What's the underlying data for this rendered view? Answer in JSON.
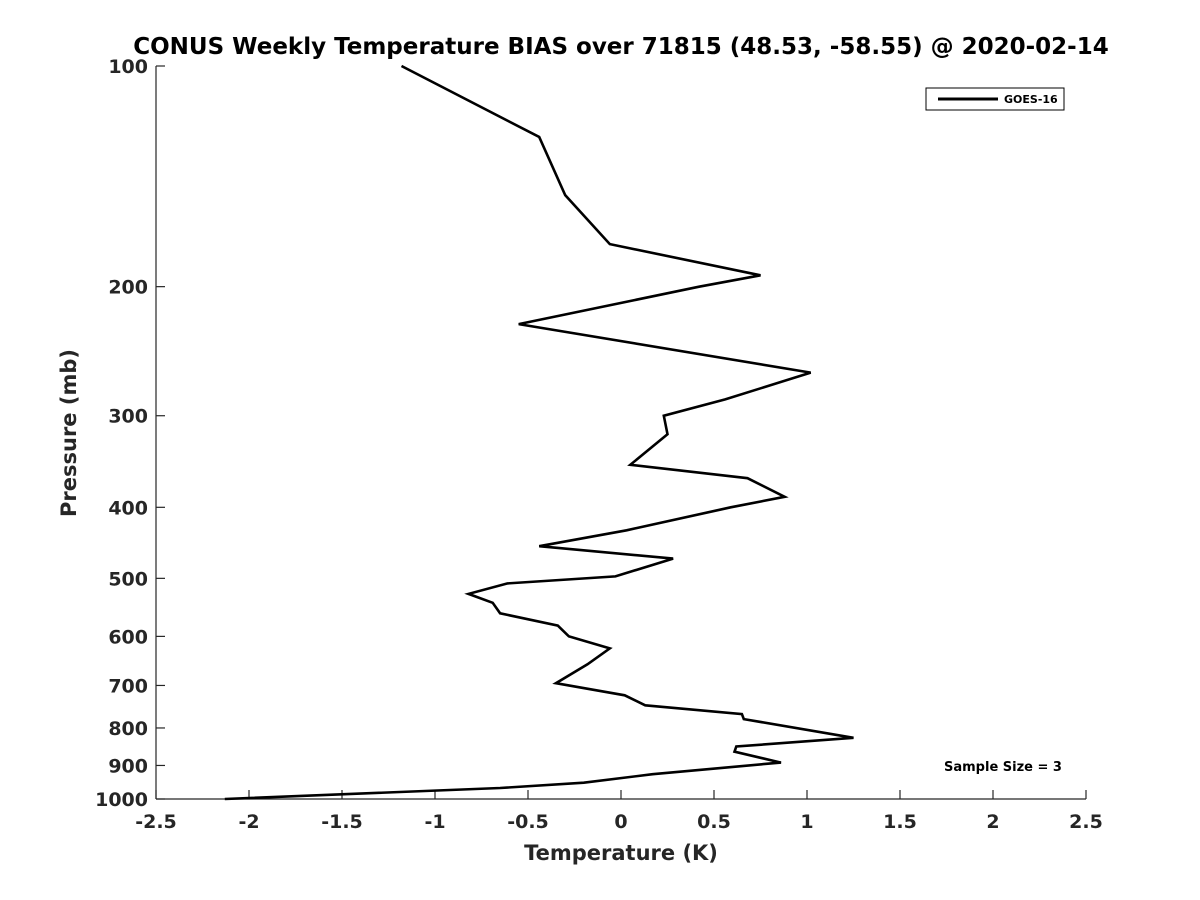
{
  "chart_data": {
    "type": "line",
    "title": "CONUS Weekly Temperature BIAS over 71815 (48.53, -58.55) @ 2020-02-14",
    "xlabel": "Temperature (K)",
    "ylabel": "Pressure (mb)",
    "xlim": [
      -2.5,
      2.5
    ],
    "ylim": [
      1000,
      100
    ],
    "y_scale": "log",
    "y_reversed": true,
    "grid": false,
    "legend_position": "top-right",
    "x_ticks": [
      "-2.5",
      "-2",
      "-1.5",
      "-1",
      "-0.5",
      "0",
      "0.5",
      "1",
      "1.5",
      "2",
      "2.5"
    ],
    "y_ticks": [
      "100",
      "200",
      "300",
      "400",
      "500",
      "600",
      "700",
      "800",
      "900",
      "1000"
    ],
    "annotation": "Sample Size = 3",
    "series": [
      {
        "name": "GOES-16",
        "color": "#000000",
        "points": [
          [
            -1.18,
            100
          ],
          [
            -0.44,
            125
          ],
          [
            -0.3,
            150
          ],
          [
            -0.06,
            175
          ],
          [
            0.75,
            193
          ],
          [
            0.42,
            200
          ],
          [
            -0.55,
            225
          ],
          [
            1.02,
            262
          ],
          [
            0.56,
            285
          ],
          [
            0.23,
            300
          ],
          [
            0.25,
            318
          ],
          [
            0.05,
            350
          ],
          [
            0.68,
            365
          ],
          [
            0.88,
            387
          ],
          [
            0.59,
            400
          ],
          [
            0.03,
            430
          ],
          [
            -0.44,
            452
          ],
          [
            0.28,
            470
          ],
          [
            -0.03,
            497
          ],
          [
            -0.61,
            508
          ],
          [
            -0.82,
            525
          ],
          [
            -0.69,
            540
          ],
          [
            -0.65,
            558
          ],
          [
            -0.34,
            580
          ],
          [
            -0.28,
            600
          ],
          [
            -0.06,
            623
          ],
          [
            -0.18,
            655
          ],
          [
            -0.35,
            695
          ],
          [
            0.02,
            722
          ],
          [
            0.13,
            745
          ],
          [
            0.65,
            766
          ],
          [
            0.66,
            778
          ],
          [
            1.25,
            825
          ],
          [
            0.62,
            848
          ],
          [
            0.61,
            862
          ],
          [
            0.86,
            892
          ],
          [
            0.79,
            895
          ],
          [
            0.17,
            925
          ],
          [
            -0.2,
            950
          ],
          [
            -0.65,
            966
          ],
          [
            -2.13,
            1000
          ]
        ]
      }
    ]
  }
}
